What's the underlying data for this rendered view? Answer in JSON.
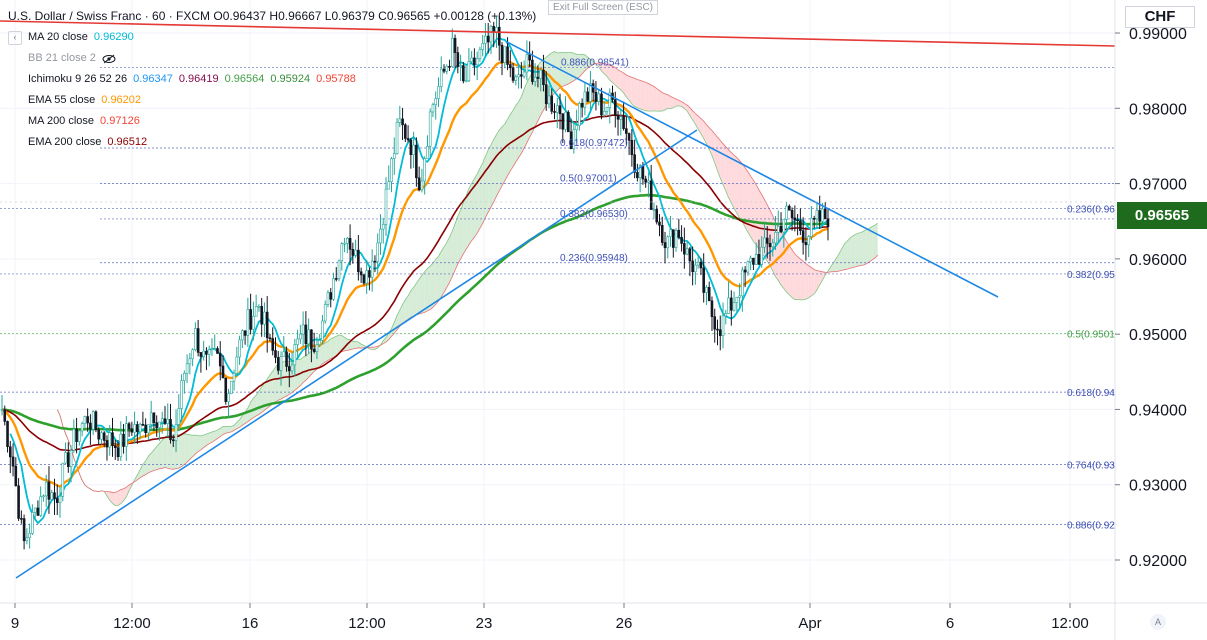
{
  "header": {
    "symbol": "U.S. Dollar / Swiss Franc · 60 · FXCM",
    "ohlc": "O0.96437 H0.96667 L0.96379 C0.96565 +0.00128 (+0.13%)",
    "exit_fullscreen": "Exit Full Screen (ESC)"
  },
  "indicators": [
    {
      "name": "MA 20 close",
      "values": [
        "0.96290"
      ],
      "colors": [
        "#00bcd4"
      ],
      "muted": false
    },
    {
      "name": "BB 21 close 2",
      "values": [],
      "colors": [],
      "muted": true
    },
    {
      "name": "Ichimoku 9 26 52 26",
      "values": [
        "0.96347",
        "0.96419",
        "0.96564",
        "0.95924",
        "0.95788"
      ],
      "colors": [
        "#2196f3",
        "#880e4f",
        "#43a047",
        "#388e3c",
        "#f44336"
      ],
      "muted": false
    },
    {
      "name": "EMA 55 close",
      "values": [
        "0.96202"
      ],
      "colors": [
        "#ff9800"
      ],
      "muted": false
    },
    {
      "name": "MA 200 close",
      "values": [
        "0.97126"
      ],
      "colors": [
        "#f44336"
      ],
      "muted": false
    },
    {
      "name": "EMA 200 close",
      "values": [
        "0.96512"
      ],
      "colors": [
        "#8b0000"
      ],
      "muted": false
    }
  ],
  "price_axis": {
    "currency": "CHF",
    "current_price": "0.96565",
    "ticks": [
      "0.99000",
      "0.98000",
      "0.97000",
      "0.96000",
      "0.95000",
      "0.94000",
      "0.93000",
      "0.92000"
    ]
  },
  "time_axis": {
    "ticks": [
      "9",
      "12:00",
      "16",
      "12:00",
      "23",
      "26",
      "Apr",
      "6",
      "12:00"
    ],
    "auto_button": "A"
  },
  "colors": {
    "up_candle": "#26a69a",
    "down_candle": "#131722",
    "ma20": "#00bcd4",
    "ema55": "#ff9800",
    "ema200": "#8b0000",
    "ma200": "#2ea02e",
    "trendline": "#1e88e5",
    "resistance": "#e53935",
    "fib_text": "#3f51b5",
    "fib_text_green": "#43a047",
    "cloud_green": "#c8e6c9",
    "cloud_red": "#ffcdd2"
  },
  "chart_data": {
    "type": "candlestick",
    "title": "U.S. Dollar / Swiss Franc · 60 · FXCM",
    "ylim": [
      0.916,
      0.994
    ],
    "yticks": [
      0.99,
      0.98,
      0.97,
      0.96,
      0.95,
      0.94,
      0.93,
      0.92
    ],
    "xticks": [
      "9",
      "12:00",
      "16",
      "12:00",
      "23",
      "26",
      "Apr",
      "6",
      "12:00"
    ],
    "grid": true,
    "fib_retracement_top": [
      {
        "label": "0.886(0.98541)",
        "price": 0.98541
      },
      {
        "label": "0.618(0.97472)",
        "price": 0.97472
      },
      {
        "label": "0.5(0.97001)",
        "price": 0.97001
      },
      {
        "label": "0.382(0.96530)",
        "price": 0.9653
      },
      {
        "label": "0.236(0.95948)",
        "price": 0.95948
      }
    ],
    "fib_retracement_right": [
      {
        "label": "0.236(0.96",
        "price": 0.9667
      },
      {
        "label": "0.382(0.95",
        "price": 0.958
      },
      {
        "label": "0.5(0.9501",
        "price": 0.9501
      },
      {
        "label": "0.618(0.94",
        "price": 0.9423
      },
      {
        "label": "0.764(0.93",
        "price": 0.9327
      },
      {
        "label": "0.886(0.92",
        "price": 0.9247
      }
    ],
    "price_path": [
      0.94,
      0.933,
      0.922,
      0.926,
      0.93,
      0.928,
      0.933,
      0.937,
      0.939,
      0.937,
      0.936,
      0.935,
      0.938,
      0.937,
      0.94,
      0.938,
      0.936,
      0.945,
      0.95,
      0.946,
      0.947,
      0.942,
      0.948,
      0.952,
      0.954,
      0.948,
      0.946,
      0.947,
      0.95,
      0.949,
      0.952,
      0.958,
      0.964,
      0.96,
      0.958,
      0.962,
      0.97,
      0.978,
      0.976,
      0.97,
      0.98,
      0.984,
      0.988,
      0.983,
      0.986,
      0.988,
      0.99,
      0.986,
      0.983,
      0.986,
      0.984,
      0.981,
      0.98,
      0.976,
      0.981,
      0.982,
      0.98,
      0.981,
      0.978,
      0.973,
      0.97,
      0.966,
      0.962,
      0.964,
      0.96,
      0.958,
      0.953,
      0.951,
      0.954,
      0.957,
      0.96,
      0.961,
      0.963,
      0.966,
      0.965,
      0.963,
      0.965,
      0.9657
    ]
  }
}
